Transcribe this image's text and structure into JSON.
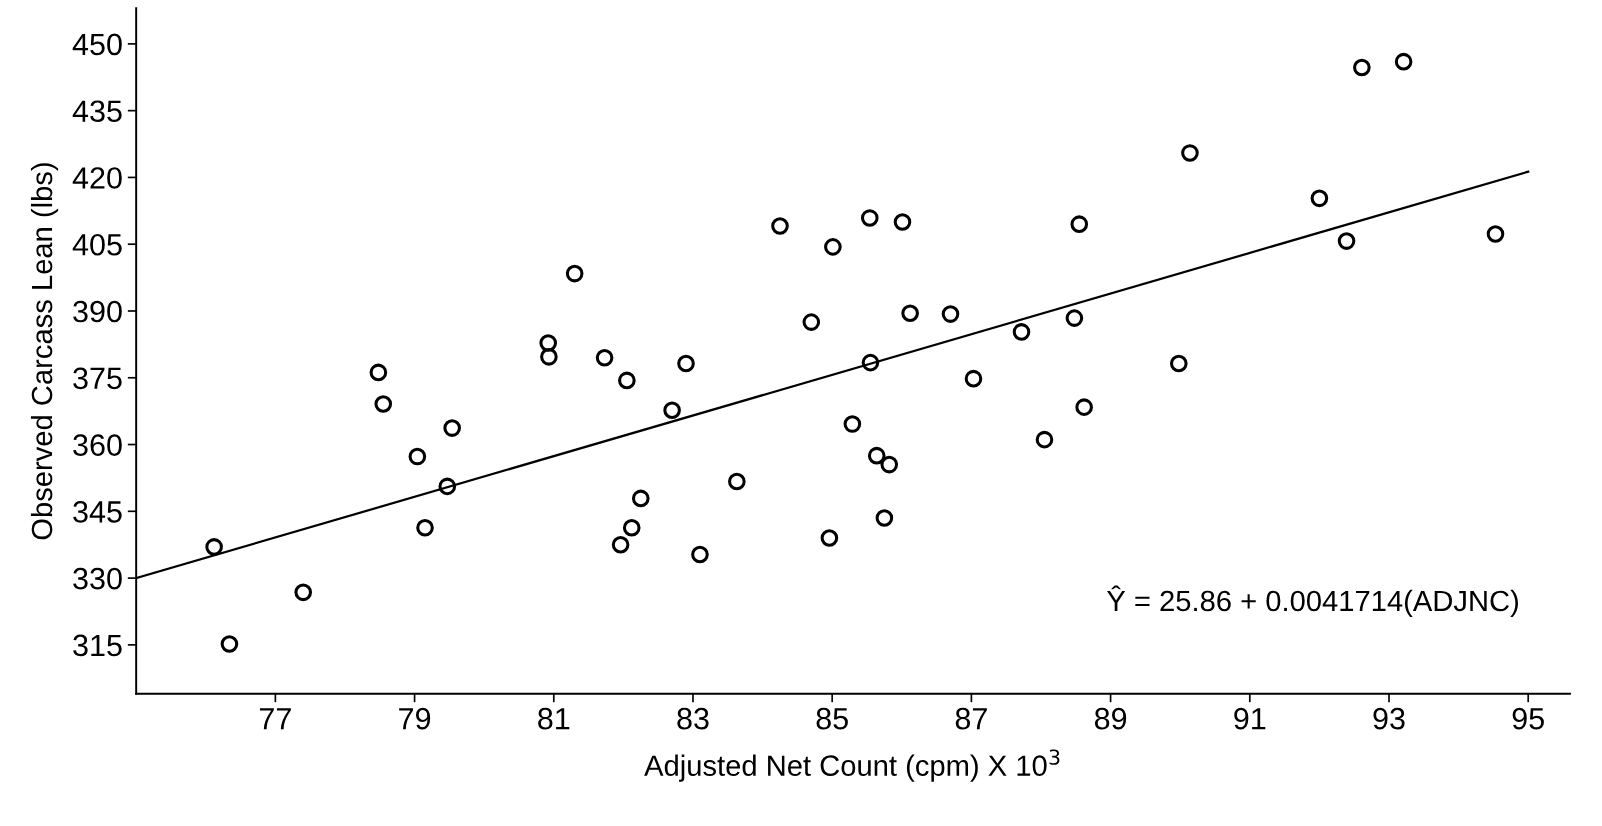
{
  "chart_data": {
    "type": "scatter",
    "xlabel": "Adjusted Net Count (cpm) X 10$^{3}$",
    "ylabel": "Observed Carcass Lean (lbs)",
    "xlim": [
      75,
      95.6
    ],
    "ylim": [
      304,
      458
    ],
    "xticks": [
      77,
      79,
      81,
      83,
      85,
      87,
      89,
      91,
      93,
      95
    ],
    "yticks": [
      315,
      330,
      345,
      360,
      375,
      390,
      405,
      420,
      435,
      450
    ],
    "grid": false,
    "legend": false,
    "annotations": [
      "Ŷ = 25.86 + 0.0041714(ADJNC)"
    ],
    "series": [
      {
        "marker": "circle",
        "color": "#000000",
        "x": [
          76.12,
          76.34,
          77.4,
          78.48,
          78.55,
          79.04,
          79.15,
          79.47,
          79.54,
          80.92,
          80.93,
          81.3,
          81.73,
          81.96,
          82.05,
          82.12,
          82.25,
          82.7,
          82.9,
          83.1,
          83.63,
          84.25,
          84.7,
          84.96,
          85.01,
          85.29,
          85.54,
          85.55,
          85.64,
          85.75,
          85.82,
          86.01,
          86.12,
          86.7,
          87.03,
          87.72,
          88.05,
          88.48,
          88.55,
          88.62,
          89.98,
          90.14,
          92.0,
          92.39,
          92.61,
          93.21,
          94.53
        ],
        "values": [
          337.0,
          315.2,
          326.8,
          376.2,
          369.1,
          357.3,
          341.3,
          350.6,
          363.7,
          382.8,
          379.7,
          398.4,
          379.5,
          337.5,
          374.4,
          341.3,
          347.9,
          367.7,
          378.2,
          335.3,
          351.7,
          409.1,
          387.5,
          339.0,
          404.4,
          364.6,
          410.9,
          378.4,
          357.5,
          343.5,
          355.5,
          410.0,
          389.5,
          389.3,
          374.8,
          385.3,
          361.1,
          388.4,
          409.5,
          368.4,
          378.2,
          425.5,
          415.3,
          405.7,
          444.7,
          446.0,
          407.3
        ]
      },
      {
        "type": "line",
        "marker": "none",
        "line_style": "solid",
        "color": "#000000",
        "x": [
          75.0,
          95.0
        ],
        "values": [
          330.0,
          421.3
        ]
      }
    ]
  }
}
